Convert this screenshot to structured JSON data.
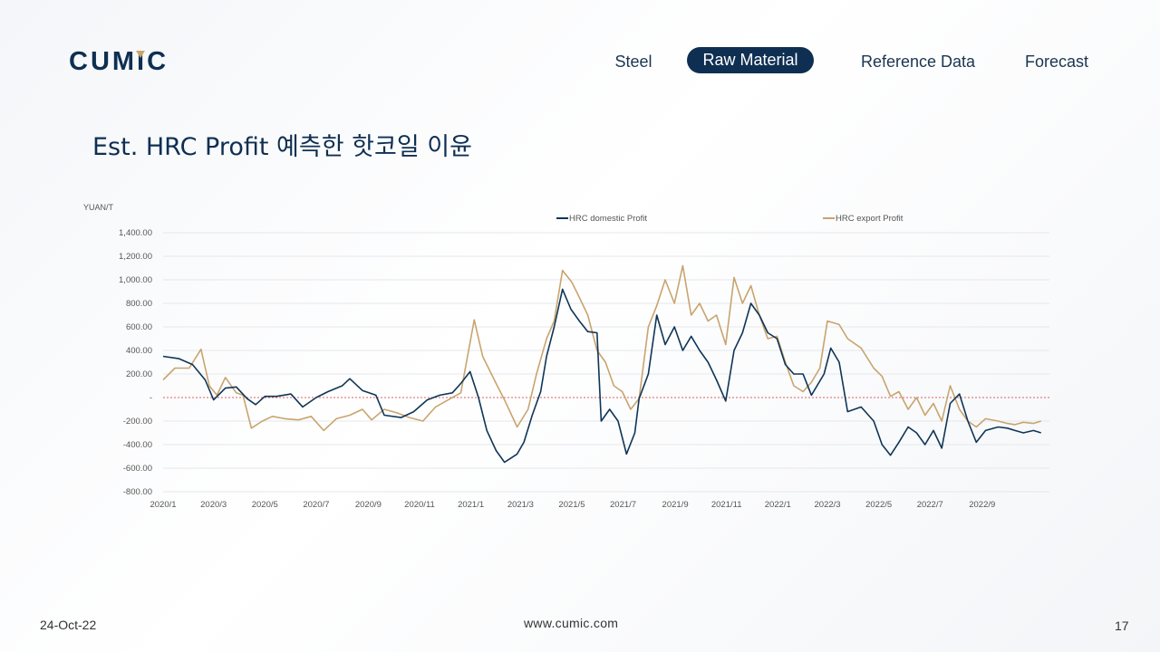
{
  "logo": {
    "text": "CUMIC",
    "color": "#0f2f52",
    "accent": "#c9a46e"
  },
  "nav": {
    "items": [
      {
        "label": "Steel",
        "active": false
      },
      {
        "label": "Raw Material",
        "active": true
      },
      {
        "label": "Reference Data",
        "active": false
      },
      {
        "label": "Forecast",
        "active": false
      }
    ]
  },
  "page_title": "Est. HRC Profit 예측한 핫코일 이윤",
  "footer": {
    "date": "24-Oct-22",
    "url": "www.cumic.com",
    "page": "17"
  },
  "chart_data": {
    "type": "line",
    "ylabel": "YUAN/T",
    "ylim": [
      -800,
      1400
    ],
    "yticks": [
      -800,
      -600,
      -400,
      -200,
      0,
      200,
      400,
      600,
      800,
      1000,
      1200,
      1400
    ],
    "ytick_labels": [
      "-800.00",
      "-600.00",
      "-400.00",
      "-200.00",
      "-",
      "200.00",
      "400.00",
      "600.00",
      "800.00",
      "1,000.00",
      "1,200.00",
      "1,400.00"
    ],
    "xlim": [
      "2020-01-01",
      "2022-11-20"
    ],
    "xticks": [
      "2020-01-01",
      "2020-03-01",
      "2020-05-01",
      "2020-07-01",
      "2020-09-01",
      "2020-11-01",
      "2021-01-01",
      "2021-03-01",
      "2021-05-01",
      "2021-07-01",
      "2021-09-01",
      "2021-11-01",
      "2022-01-01",
      "2022-03-01",
      "2022-05-01",
      "2022-07-01",
      "2022-09-01"
    ],
    "xtick_labels": [
      "2020/1",
      "2020/3",
      "2020/5",
      "2020/7",
      "2020/9",
      "2020/11",
      "2021/1",
      "2021/3",
      "2021/5",
      "2021/7",
      "2021/9",
      "2021/11",
      "2022/1",
      "2022/3",
      "2022/5",
      "2022/7",
      "2022/9"
    ],
    "zero_line": {
      "color": "#e06060",
      "style": "dotted"
    },
    "grid": true,
    "legend_position": "top",
    "series": [
      {
        "name": "HRC domestic Profit",
        "color": "#0f3556",
        "points": [
          [
            "2020-01-01",
            350
          ],
          [
            "2020-01-20",
            330
          ],
          [
            "2020-02-05",
            280
          ],
          [
            "2020-02-20",
            150
          ],
          [
            "2020-03-01",
            -20
          ],
          [
            "2020-03-15",
            80
          ],
          [
            "2020-03-28",
            90
          ],
          [
            "2020-04-10",
            -10
          ],
          [
            "2020-04-20",
            -60
          ],
          [
            "2020-05-01",
            10
          ],
          [
            "2020-05-15",
            10
          ],
          [
            "2020-06-01",
            30
          ],
          [
            "2020-06-15",
            -80
          ],
          [
            "2020-07-01",
            0
          ],
          [
            "2020-07-15",
            50
          ],
          [
            "2020-08-01",
            100
          ],
          [
            "2020-08-10",
            160
          ],
          [
            "2020-08-25",
            60
          ],
          [
            "2020-09-10",
            20
          ],
          [
            "2020-09-20",
            -150
          ],
          [
            "2020-10-10",
            -170
          ],
          [
            "2020-10-25",
            -120
          ],
          [
            "2020-11-10",
            -20
          ],
          [
            "2020-11-25",
            20
          ],
          [
            "2020-12-10",
            40
          ],
          [
            "2020-12-20",
            120
          ],
          [
            "2020-12-31",
            220
          ],
          [
            "2021-01-10",
            0
          ],
          [
            "2021-01-20",
            -280
          ],
          [
            "2021-01-31",
            -450
          ],
          [
            "2021-02-10",
            -550
          ],
          [
            "2021-02-25",
            -480
          ],
          [
            "2021-03-05",
            -380
          ],
          [
            "2021-03-15",
            -150
          ],
          [
            "2021-03-25",
            50
          ],
          [
            "2021-04-01",
            350
          ],
          [
            "2021-04-10",
            600
          ],
          [
            "2021-04-20",
            920
          ],
          [
            "2021-04-30",
            750
          ],
          [
            "2021-05-10",
            650
          ],
          [
            "2021-05-20",
            560
          ],
          [
            "2021-05-31",
            550
          ],
          [
            "2021-06-05",
            -200
          ],
          [
            "2021-06-15",
            -100
          ],
          [
            "2021-06-25",
            -200
          ],
          [
            "2021-07-05",
            -480
          ],
          [
            "2021-07-15",
            -300
          ],
          [
            "2021-07-20",
            -10
          ],
          [
            "2021-07-31",
            200
          ],
          [
            "2021-08-10",
            700
          ],
          [
            "2021-08-20",
            450
          ],
          [
            "2021-08-31",
            600
          ],
          [
            "2021-09-10",
            400
          ],
          [
            "2021-09-20",
            520
          ],
          [
            "2021-09-30",
            400
          ],
          [
            "2021-10-10",
            300
          ],
          [
            "2021-10-20",
            150
          ],
          [
            "2021-10-31",
            -30
          ],
          [
            "2021-11-10",
            400
          ],
          [
            "2021-11-20",
            550
          ],
          [
            "2021-11-30",
            800
          ],
          [
            "2021-12-10",
            700
          ],
          [
            "2021-12-20",
            550
          ],
          [
            "2021-12-31",
            500
          ],
          [
            "2022-01-10",
            280
          ],
          [
            "2022-01-20",
            200
          ],
          [
            "2022-01-31",
            200
          ],
          [
            "2022-02-10",
            20
          ],
          [
            "2022-02-25",
            200
          ],
          [
            "2022-03-05",
            420
          ],
          [
            "2022-03-15",
            300
          ],
          [
            "2022-03-25",
            -120
          ],
          [
            "2022-04-10",
            -80
          ],
          [
            "2022-04-25",
            -200
          ],
          [
            "2022-05-05",
            -400
          ],
          [
            "2022-05-15",
            -490
          ],
          [
            "2022-05-25",
            -380
          ],
          [
            "2022-06-05",
            -250
          ],
          [
            "2022-06-15",
            -300
          ],
          [
            "2022-06-25",
            -400
          ],
          [
            "2022-07-05",
            -280
          ],
          [
            "2022-07-15",
            -430
          ],
          [
            "2022-07-25",
            -50
          ],
          [
            "2022-08-05",
            30
          ],
          [
            "2022-08-15",
            -200
          ],
          [
            "2022-08-25",
            -380
          ],
          [
            "2022-09-05",
            -280
          ],
          [
            "2022-09-20",
            -250
          ],
          [
            "2022-10-01",
            -260
          ],
          [
            "2022-10-10",
            -280
          ],
          [
            "2022-10-20",
            -300
          ],
          [
            "2022-11-01",
            -280
          ],
          [
            "2022-11-10",
            -300
          ]
        ]
      },
      {
        "name": "HRC export Profit",
        "color": "#c9a46e",
        "points": [
          [
            "2020-01-01",
            150
          ],
          [
            "2020-01-15",
            250
          ],
          [
            "2020-02-01",
            250
          ],
          [
            "2020-02-15",
            410
          ],
          [
            "2020-02-25",
            100
          ],
          [
            "2020-03-05",
            20
          ],
          [
            "2020-03-15",
            170
          ],
          [
            "2020-03-28",
            40
          ],
          [
            "2020-04-05",
            20
          ],
          [
            "2020-04-15",
            -260
          ],
          [
            "2020-04-28",
            -200
          ],
          [
            "2020-05-10",
            -160
          ],
          [
            "2020-05-25",
            -180
          ],
          [
            "2020-06-10",
            -190
          ],
          [
            "2020-06-25",
            -160
          ],
          [
            "2020-07-10",
            -280
          ],
          [
            "2020-07-25",
            -180
          ],
          [
            "2020-08-10",
            -150
          ],
          [
            "2020-08-25",
            -100
          ],
          [
            "2020-09-05",
            -190
          ],
          [
            "2020-09-20",
            -100
          ],
          [
            "2020-10-05",
            -130
          ],
          [
            "2020-10-20",
            -170
          ],
          [
            "2020-11-05",
            -200
          ],
          [
            "2020-11-20",
            -80
          ],
          [
            "2020-12-05",
            -20
          ],
          [
            "2020-12-20",
            40
          ],
          [
            "2021-01-05",
            660
          ],
          [
            "2021-01-15",
            350
          ],
          [
            "2021-01-31",
            120
          ],
          [
            "2021-02-10",
            -20
          ],
          [
            "2021-02-25",
            -250
          ],
          [
            "2021-03-10",
            -100
          ],
          [
            "2021-03-20",
            200
          ],
          [
            "2021-04-01",
            500
          ],
          [
            "2021-04-10",
            650
          ],
          [
            "2021-04-20",
            1080
          ],
          [
            "2021-05-01",
            980
          ],
          [
            "2021-05-10",
            850
          ],
          [
            "2021-05-20",
            700
          ],
          [
            "2021-05-31",
            400
          ],
          [
            "2021-06-10",
            300
          ],
          [
            "2021-06-20",
            100
          ],
          [
            "2021-06-30",
            50
          ],
          [
            "2021-07-10",
            -100
          ],
          [
            "2021-07-20",
            -10
          ],
          [
            "2021-07-31",
            600
          ],
          [
            "2021-08-10",
            780
          ],
          [
            "2021-08-20",
            1000
          ],
          [
            "2021-08-31",
            800
          ],
          [
            "2021-09-10",
            1120
          ],
          [
            "2021-09-20",
            700
          ],
          [
            "2021-09-30",
            800
          ],
          [
            "2021-10-10",
            650
          ],
          [
            "2021-10-20",
            700
          ],
          [
            "2021-10-31",
            450
          ],
          [
            "2021-11-10",
            1020
          ],
          [
            "2021-11-20",
            800
          ],
          [
            "2021-11-30",
            950
          ],
          [
            "2021-12-10",
            700
          ],
          [
            "2021-12-20",
            500
          ],
          [
            "2021-12-31",
            520
          ],
          [
            "2022-01-10",
            300
          ],
          [
            "2022-01-20",
            100
          ],
          [
            "2022-01-31",
            50
          ],
          [
            "2022-02-10",
            130
          ],
          [
            "2022-02-20",
            250
          ],
          [
            "2022-03-01",
            650
          ],
          [
            "2022-03-15",
            620
          ],
          [
            "2022-03-25",
            500
          ],
          [
            "2022-04-10",
            420
          ],
          [
            "2022-04-25",
            250
          ],
          [
            "2022-05-05",
            180
          ],
          [
            "2022-05-15",
            10
          ],
          [
            "2022-05-25",
            50
          ],
          [
            "2022-06-05",
            -100
          ],
          [
            "2022-06-15",
            0
          ],
          [
            "2022-06-25",
            -150
          ],
          [
            "2022-07-05",
            -50
          ],
          [
            "2022-07-15",
            -200
          ],
          [
            "2022-07-25",
            100
          ],
          [
            "2022-08-05",
            -100
          ],
          [
            "2022-08-15",
            -200
          ],
          [
            "2022-08-25",
            -250
          ],
          [
            "2022-09-05",
            -180
          ],
          [
            "2022-09-20",
            -200
          ],
          [
            "2022-10-01",
            -220
          ],
          [
            "2022-10-10",
            -230
          ],
          [
            "2022-10-20",
            -210
          ],
          [
            "2022-11-01",
            -220
          ],
          [
            "2022-11-10",
            -200
          ]
        ]
      }
    ]
  }
}
